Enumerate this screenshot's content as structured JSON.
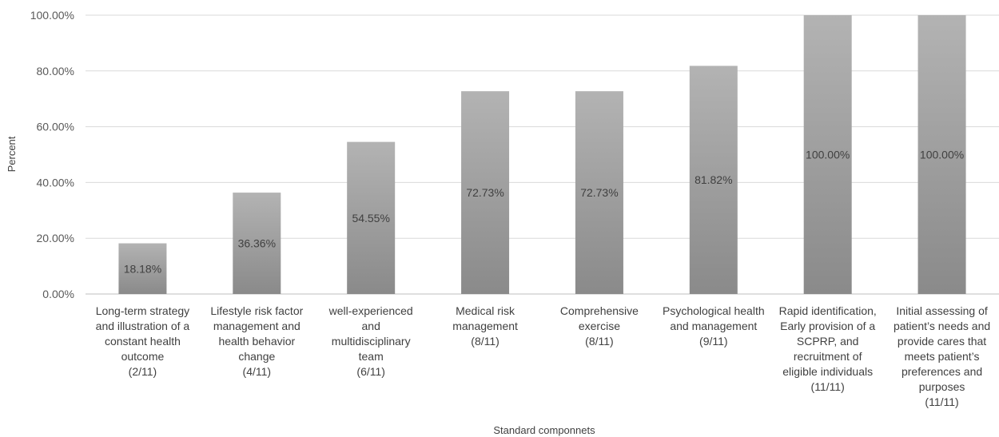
{
  "chart_data": {
    "type": "bar",
    "title": "",
    "xlabel": "Standard componnets",
    "ylabel": "Percent",
    "ylim": [
      0,
      100
    ],
    "ytick_values": [
      0,
      20,
      40,
      60,
      80,
      100
    ],
    "ytick_labels": [
      "0.00%",
      "20.00%",
      "40.00%",
      "60.00%",
      "80.00%",
      "100.00%"
    ],
    "grid": true,
    "legend": "none",
    "bar_color": "#9e9e9e",
    "categories": [
      [
        "Long-term strategy",
        "and illustration of a",
        "constant health",
        "outcome",
        "(2/11)"
      ],
      [
        "Lifestyle risk factor",
        "management and",
        "health behavior",
        "change",
        "(4/11)"
      ],
      [
        "well-experienced",
        "and",
        "multidisciplinary",
        "team",
        "(6/11)"
      ],
      [
        "Medical risk",
        "management",
        "(8/11)"
      ],
      [
        "Comprehensive",
        "exercise",
        "(8/11)"
      ],
      [
        "Psychological health",
        "and management",
        "(9/11)"
      ],
      [
        "Rapid identification,",
        "Early provision of a",
        "SCPRP, and",
        "recruitment of",
        "eligible individuals",
        "(11/11)"
      ],
      [
        "Initial assessing of",
        "patient’s needs and",
        "provide cares that",
        "meets patient’s",
        "preferences and",
        "purposes",
        "(11/11)"
      ]
    ],
    "values": [
      18.18,
      36.36,
      54.55,
      72.73,
      72.73,
      81.82,
      100.0,
      100.0
    ],
    "data_labels": [
      "18.18%",
      "36.36%",
      "54.55%",
      "72.73%",
      "72.73%",
      "81.82%",
      "100.00%",
      "100.00%"
    ]
  }
}
